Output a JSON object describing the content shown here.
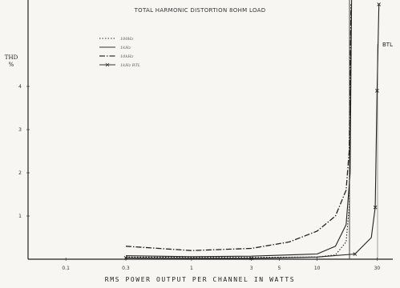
{
  "chart_data": {
    "type": "line",
    "title": "TOTAL HARMONIC DISTORTION 8OHM LOAD",
    "xlabel": "RMS POWER OUTPUT PER CHANNEL IN WATTS",
    "ylabel": "THD %",
    "xscale": "log",
    "xlim": [
      0.05,
      40
    ],
    "ylim": [
      0,
      6
    ],
    "x_ticks": [
      "0.1",
      "0.3",
      "1",
      "3",
      "5",
      "10",
      "30"
    ],
    "y_ticks": [
      "1",
      "2",
      "3",
      "4"
    ],
    "annotation": "BTL",
    "legend_position": "top-left",
    "series": [
      {
        "name": "100Hz",
        "style": "dotted",
        "points": [
          [
            0.3,
            0.05
          ],
          [
            1,
            0.04
          ],
          [
            3,
            0.04
          ],
          [
            10,
            0.05
          ],
          [
            14,
            0.1
          ],
          [
            17,
            0.4
          ],
          [
            18,
            1.2
          ],
          [
            18.7,
            5.9
          ]
        ]
      },
      {
        "name": "1kHz",
        "style": "solid",
        "points": [
          [
            0.3,
            0.08
          ],
          [
            1,
            0.06
          ],
          [
            3,
            0.07
          ],
          [
            10,
            0.12
          ],
          [
            14,
            0.3
          ],
          [
            17,
            0.8
          ],
          [
            18.3,
            2.0
          ],
          [
            18.8,
            6.0
          ]
        ]
      },
      {
        "name": "10kHz",
        "style": "dash-dot",
        "points": [
          [
            0.3,
            0.3
          ],
          [
            1,
            0.2
          ],
          [
            3,
            0.25
          ],
          [
            6,
            0.4
          ],
          [
            10,
            0.65
          ],
          [
            14,
            1.0
          ],
          [
            17,
            1.6
          ],
          [
            18,
            2.5
          ],
          [
            18.6,
            5.9
          ]
        ]
      },
      {
        "name": "1kHz BTL",
        "style": "solid-x",
        "points": [
          [
            0.3,
            0.03
          ],
          [
            1,
            0.02
          ],
          [
            3,
            0.02
          ],
          [
            10,
            0.05
          ],
          [
            20,
            0.12
          ],
          [
            27,
            0.5
          ],
          [
            29,
            1.2
          ],
          [
            30,
            3.9
          ],
          [
            31,
            5.9
          ]
        ]
      }
    ]
  }
}
